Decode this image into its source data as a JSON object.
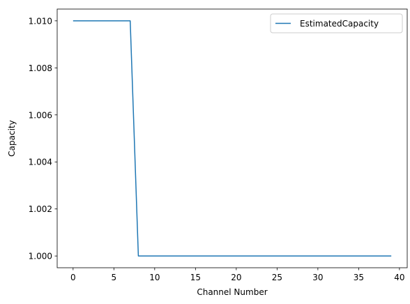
{
  "chart_data": {
    "type": "line",
    "title": "",
    "xlabel": "Channel Number",
    "ylabel": "Capacity",
    "xlim": [
      -1.95,
      40.95
    ],
    "ylim": [
      0.9995,
      1.0105
    ],
    "xticks": [
      0,
      5,
      10,
      15,
      20,
      25,
      30,
      35,
      40
    ],
    "xtick_labels": [
      "0",
      "5",
      "10",
      "15",
      "20",
      "25",
      "30",
      "35",
      "40"
    ],
    "yticks": [
      1.0,
      1.002,
      1.004,
      1.006,
      1.008,
      1.01
    ],
    "ytick_labels": [
      "1.000",
      "1.002",
      "1.004",
      "1.006",
      "1.008",
      "1.010"
    ],
    "grid": false,
    "legend_position": "top-right",
    "series": [
      {
        "name": "EstimatedCapacity",
        "color": "#1f77b4",
        "x": [
          0,
          1,
          2,
          3,
          4,
          5,
          6,
          7,
          8,
          9,
          10,
          11,
          12,
          13,
          14,
          15,
          16,
          17,
          18,
          19,
          20,
          21,
          22,
          23,
          24,
          25,
          26,
          27,
          28,
          29,
          30,
          31,
          32,
          33,
          34,
          35,
          36,
          37,
          38,
          39
        ],
        "values": [
          1.01,
          1.01,
          1.01,
          1.01,
          1.01,
          1.01,
          1.01,
          1.01,
          1.0,
          1.0,
          1.0,
          1.0,
          1.0,
          1.0,
          1.0,
          1.0,
          1.0,
          1.0,
          1.0,
          1.0,
          1.0,
          1.0,
          1.0,
          1.0,
          1.0,
          1.0,
          1.0,
          1.0,
          1.0,
          1.0,
          1.0,
          1.0,
          1.0,
          1.0,
          1.0,
          1.0,
          1.0,
          1.0,
          1.0,
          1.0
        ]
      }
    ]
  }
}
